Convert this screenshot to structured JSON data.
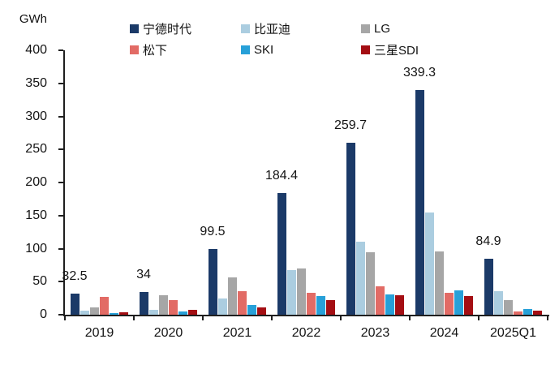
{
  "unit_label": "GWh",
  "chart_data": {
    "type": "bar",
    "title": "",
    "xlabel": "",
    "ylabel": "GWh",
    "ylim": [
      0,
      400
    ],
    "yticks": [
      0,
      50,
      100,
      150,
      200,
      250,
      300,
      350,
      400
    ],
    "grid": false,
    "legend_position": "top",
    "categories": [
      "2019",
      "2020",
      "2021",
      "2022",
      "2023",
      "2024",
      "2025Q1"
    ],
    "series": [
      {
        "name": "宁德时代",
        "key": "catl",
        "color": "#1B3A68",
        "values": [
          32.5,
          34,
          99.5,
          184.4,
          259.7,
          339.3,
          84.9
        ],
        "data_labels": [
          "32.5",
          "34",
          "99.5",
          "184.4",
          "259.7",
          "339.3",
          "84.9"
        ],
        "show_labels": true
      },
      {
        "name": "比亚迪",
        "key": "byd",
        "color": "#ABCDE0",
        "values": [
          6.5,
          7,
          25,
          68,
          111,
          154,
          36
        ],
        "show_labels": false
      },
      {
        "name": "LG",
        "key": "lg",
        "color": "#A6A6A6",
        "values": [
          11.5,
          30,
          57,
          70,
          95,
          96,
          22
        ],
        "show_labels": false
      },
      {
        "name": "松下",
        "key": "panasonic",
        "color": "#E26B65",
        "values": [
          27,
          22,
          35,
          33,
          43,
          33,
          5
        ],
        "show_labels": false
      },
      {
        "name": "SKI",
        "key": "ski",
        "color": "#27A0D8",
        "values": [
          2,
          5,
          15,
          28,
          31,
          37,
          9
        ],
        "show_labels": false
      },
      {
        "name": "三星SDI",
        "key": "samsung-sdi",
        "color": "#A40E13",
        "values": [
          4,
          7,
          11,
          22,
          30,
          28,
          6
        ],
        "show_labels": false
      }
    ]
  }
}
